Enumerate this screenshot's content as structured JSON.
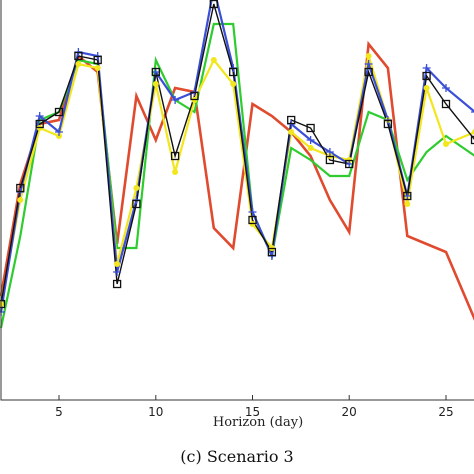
{
  "chart_data": {
    "type": "line",
    "title": "",
    "xlabel": "Horizon (day)",
    "ylabel": "",
    "caption": "(c) Scenario 3",
    "xlim": [
      2,
      26.5
    ],
    "ylim": [
      0,
      10
    ],
    "xticks": [
      5,
      10,
      15,
      20,
      25
    ],
    "grid": false,
    "legend": "none",
    "series": [
      {
        "color": "#e04a2f",
        "marker": "none",
        "x": [
          2,
          3,
          4,
          5,
          6,
          7,
          8,
          9,
          10,
          11,
          12,
          13,
          14,
          15,
          16,
          17,
          18,
          19,
          20,
          21,
          22,
          23,
          24,
          25,
          26.5
        ],
        "y": [
          2.6,
          5.4,
          6.9,
          7.0,
          8.6,
          8.2,
          3.9,
          7.6,
          6.5,
          7.8,
          7.7,
          4.3,
          3.8,
          7.4,
          7.1,
          6.7,
          6.1,
          5.0,
          4.2,
          8.9,
          8.3,
          4.1,
          3.9,
          3.7,
          2.0
        ]
      },
      {
        "color": "#2ecc2e",
        "marker": "none",
        "x": [
          2,
          3,
          4,
          5,
          6,
          7,
          8,
          9,
          10,
          11,
          12,
          13,
          14,
          15,
          16,
          17,
          18,
          19,
          20,
          21,
          22,
          23,
          24,
          25,
          26.5
        ],
        "y": [
          1.8,
          4.1,
          7.0,
          7.2,
          8.5,
          8.4,
          3.8,
          3.8,
          8.5,
          7.5,
          7.2,
          9.4,
          9.4,
          4.7,
          3.6,
          6.3,
          6.0,
          5.6,
          5.6,
          7.2,
          7.0,
          5.5,
          6.2,
          6.6,
          6.1
        ]
      },
      {
        "color": "#f2e61c",
        "marker": "circle",
        "x": [
          2,
          3,
          4,
          5,
          6,
          7,
          8,
          9,
          10,
          11,
          12,
          13,
          14,
          15,
          16,
          17,
          18,
          19,
          20,
          21,
          22,
          23,
          24,
          25,
          26.5
        ],
        "y": [
          2.4,
          5.0,
          6.8,
          6.6,
          8.4,
          8.3,
          3.4,
          5.3,
          7.9,
          5.7,
          7.5,
          8.5,
          7.9,
          4.4,
          3.8,
          6.7,
          6.3,
          6.1,
          6.0,
          8.6,
          7.0,
          4.9,
          7.8,
          6.4,
          6.7
        ]
      },
      {
        "color": "#3a4fd6",
        "marker": "plus",
        "x": [
          2,
          3,
          4,
          5,
          6,
          7,
          8,
          9,
          10,
          11,
          12,
          13,
          14,
          15,
          16,
          17,
          18,
          19,
          20,
          21,
          22,
          23,
          24,
          25,
          26.5
        ],
        "y": [
          2.2,
          5.2,
          7.1,
          6.7,
          8.7,
          8.6,
          3.2,
          5.0,
          8.2,
          7.5,
          7.7,
          10.3,
          8.3,
          4.7,
          3.6,
          6.9,
          6.5,
          6.2,
          5.9,
          8.4,
          7.0,
          5.1,
          8.3,
          7.8,
          7.2
        ]
      },
      {
        "color": "#111111",
        "marker": "square",
        "x": [
          2,
          3,
          4,
          5,
          6,
          7,
          8,
          9,
          10,
          11,
          12,
          13,
          14,
          15,
          16,
          17,
          18,
          19,
          20,
          21,
          22,
          23,
          24,
          25,
          26.5
        ],
        "y": [
          2.4,
          5.3,
          6.9,
          7.2,
          8.6,
          8.5,
          2.9,
          4.9,
          8.2,
          6.1,
          7.6,
          9.9,
          8.2,
          4.5,
          3.7,
          7.0,
          6.8,
          6.0,
          5.9,
          8.2,
          6.9,
          5.1,
          8.1,
          7.4,
          6.5
        ]
      }
    ]
  }
}
